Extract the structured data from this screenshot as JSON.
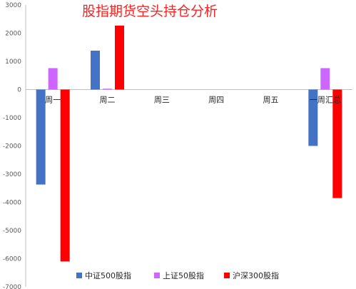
{
  "chart_data": {
    "type": "bar",
    "title": "股指期货空头持仓分析",
    "categories": [
      "周一",
      "周二",
      "周三",
      "周四",
      "周五",
      "一周汇总"
    ],
    "series": [
      {
        "name": "中证500股指",
        "color": "#4472c4",
        "values": [
          -3370,
          1380,
          null,
          null,
          null,
          -2000
        ]
      },
      {
        "name": "上证50股指",
        "color": "#cc66ff",
        "values": [
          760,
          30,
          null,
          null,
          null,
          760
        ]
      },
      {
        "name": "沪深300股指",
        "color": "#ff0000",
        "values": [
          -6100,
          2270,
          null,
          null,
          null,
          -3850
        ]
      }
    ],
    "ylim": [
      -7000,
      3000
    ],
    "yticks": [
      3000,
      2000,
      1000,
      0,
      -1000,
      -2000,
      -3000,
      -4000,
      -5000,
      -6000,
      -7000
    ],
    "grid": false,
    "legend_position": "bottom"
  }
}
